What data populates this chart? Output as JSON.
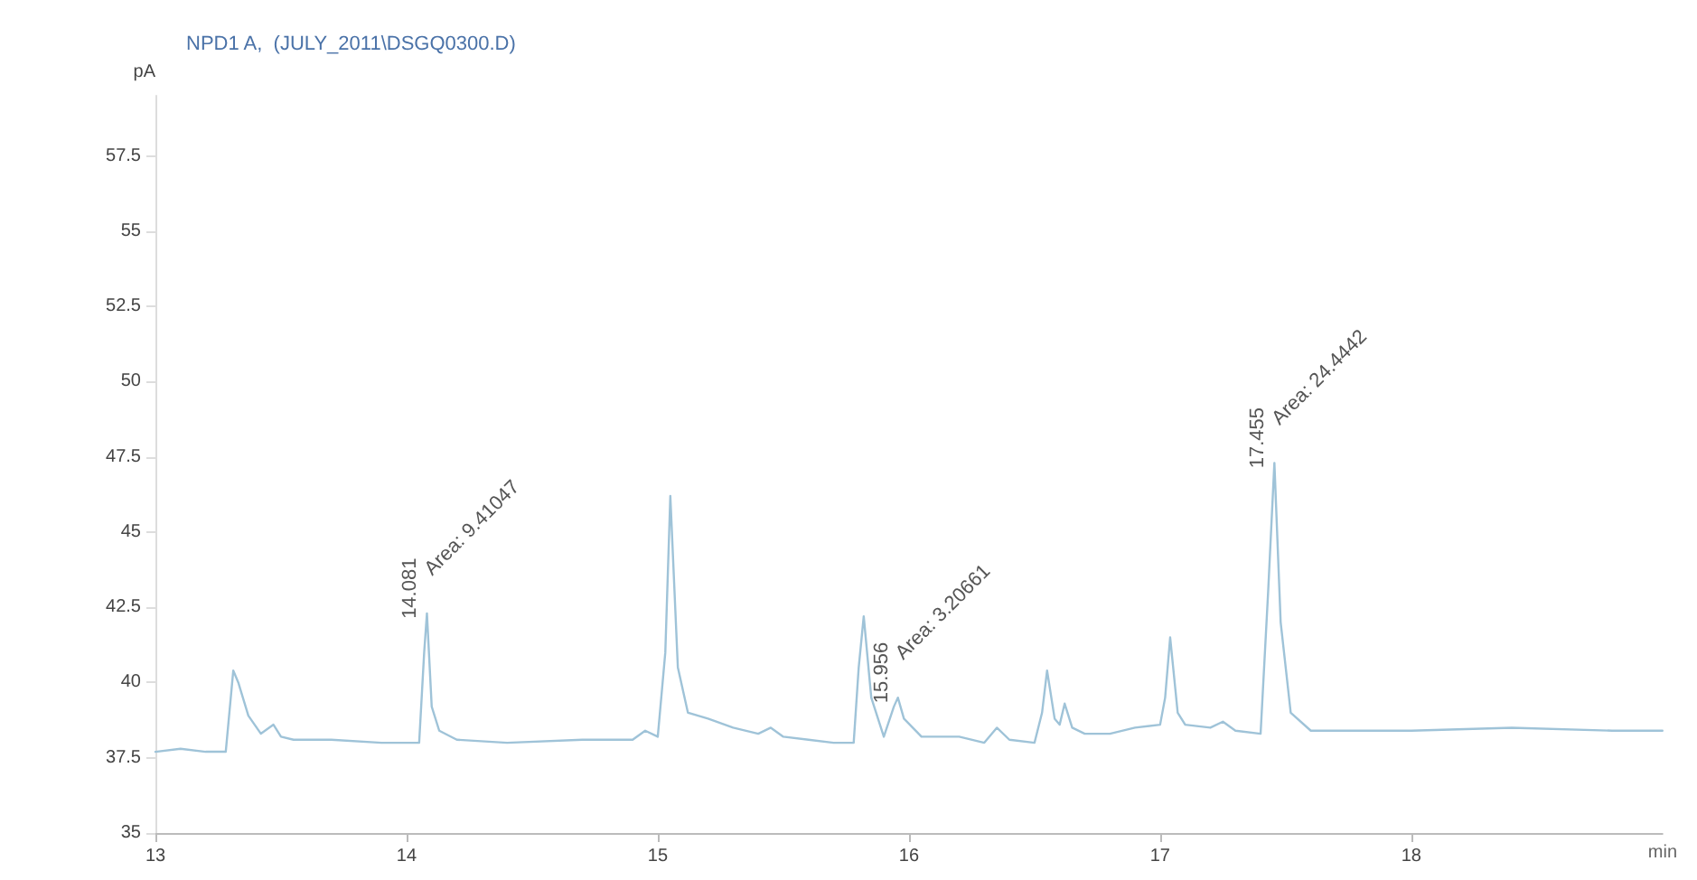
{
  "chart_data": {
    "type": "line",
    "title": "NPD1 A,  (JULY_2011\\DSGQ0300.D)",
    "xlabel": "min",
    "ylabel": "pA",
    "xlim": [
      13,
      19
    ],
    "xticks": [
      13,
      14,
      15,
      16,
      17,
      18
    ],
    "ylim": [
      35,
      59.5
    ],
    "yticks": [
      35,
      37.5,
      40,
      42.5,
      45,
      47.5,
      50,
      52.5,
      55,
      57.5
    ],
    "grid": false,
    "marker": "none",
    "line_style": "solid",
    "series": [
      {
        "color": "#9fc3d8",
        "x": [
          13,
          13.1,
          13.2,
          13.28,
          13.31,
          13.33,
          13.37,
          13.42,
          13.47,
          13.5,
          13.55,
          13.7,
          13.9,
          14.05,
          14.07,
          14.081,
          14.1,
          14.13,
          14.2,
          14.4,
          14.7,
          14.9,
          14.95,
          15.0,
          15.03,
          15.05,
          15.08,
          15.12,
          15.2,
          15.3,
          15.4,
          15.45,
          15.5,
          15.6,
          15.7,
          15.78,
          15.8,
          15.82,
          15.85,
          15.9,
          15.94,
          15.956,
          15.98,
          16.05,
          16.2,
          16.3,
          16.35,
          16.4,
          16.5,
          16.53,
          16.55,
          16.58,
          16.6,
          16.62,
          16.65,
          16.7,
          16.8,
          16.9,
          17.0,
          17.02,
          17.04,
          17.07,
          17.1,
          17.2,
          17.25,
          17.3,
          17.4,
          17.43,
          17.455,
          17.48,
          17.52,
          17.6,
          17.8,
          18.0,
          18.4,
          18.8,
          19.0
        ],
        "values": [
          37.7,
          37.8,
          37.7,
          37.7,
          40.4,
          40.0,
          38.9,
          38.3,
          38.6,
          38.2,
          38.1,
          38.1,
          38.0,
          38.0,
          41.0,
          42.3,
          39.2,
          38.4,
          38.1,
          38.0,
          38.1,
          38.1,
          38.4,
          38.2,
          41.0,
          46.2,
          40.5,
          39.0,
          38.8,
          38.5,
          38.3,
          38.5,
          38.2,
          38.1,
          38.0,
          38.0,
          40.5,
          42.2,
          39.5,
          38.2,
          39.2,
          39.5,
          38.8,
          38.2,
          38.2,
          38.0,
          38.5,
          38.1,
          38.0,
          39.0,
          40.4,
          38.8,
          38.6,
          39.3,
          38.5,
          38.3,
          38.3,
          38.5,
          38.6,
          39.5,
          41.5,
          39.0,
          38.6,
          38.5,
          38.7,
          38.4,
          38.3,
          43.0,
          47.3,
          42.0,
          39.0,
          38.4,
          38.4,
          38.4,
          38.5,
          38.4,
          38.4
        ]
      }
    ],
    "annotations": [
      {
        "text": "14.081",
        "x": 14.081,
        "y": 42.6
      },
      {
        "text": "Area: 9.41047",
        "x": 14.081,
        "y": 42.6
      },
      {
        "text": "15.956",
        "x": 15.956,
        "y": 39.8
      },
      {
        "text": "Area: 3.20661",
        "x": 15.956,
        "y": 39.8
      },
      {
        "text": "17.455",
        "x": 17.455,
        "y": 47.6
      },
      {
        "text": "Area: 24.4442",
        "x": 17.455,
        "y": 47.6
      }
    ]
  }
}
